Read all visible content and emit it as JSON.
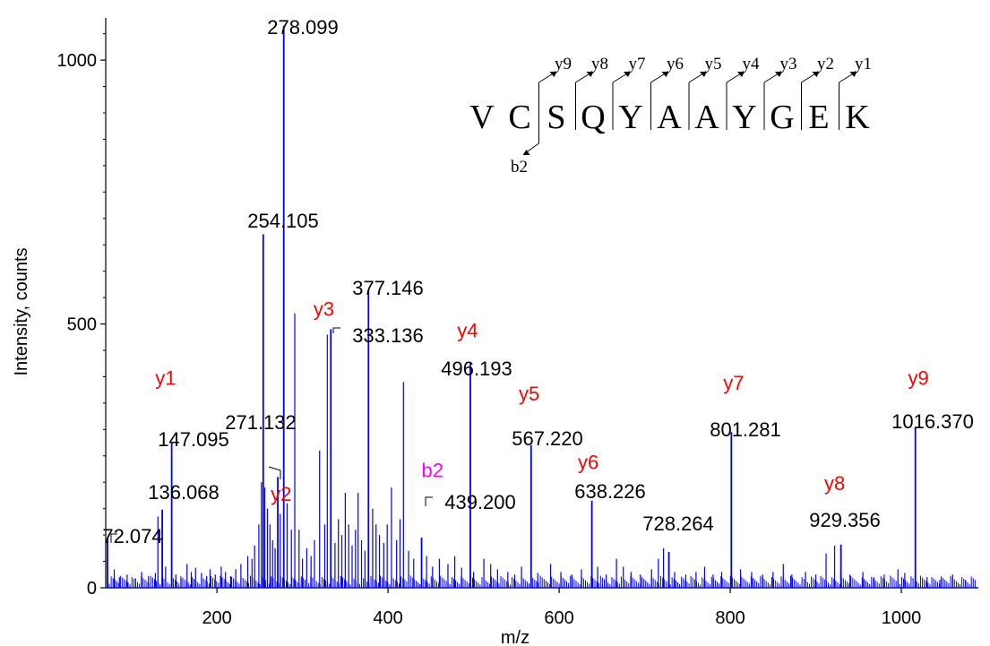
{
  "chart_data": {
    "type": "bar",
    "xlabel": "m/z",
    "ylabel": "Intensity, counts",
    "xlim": [
      70,
      1090
    ],
    "ylim": [
      0,
      1080
    ],
    "xticks": [
      200,
      400,
      600,
      800,
      1000
    ],
    "yticks": [
      0,
      500,
      1000
    ],
    "colors": {
      "peaks": "#0000ff",
      "ion": "#ff0000",
      "b_ion": "#ff00ff",
      "text": "#000000"
    },
    "peaks": [
      {
        "mz": 72.074,
        "intensity": 95,
        "label": "72.074"
      },
      {
        "mz": 136.068,
        "intensity": 148,
        "label": "136.068"
      },
      {
        "mz": 147.095,
        "intensity": 275,
        "label": "147.095"
      },
      {
        "mz": 254.105,
        "intensity": 670,
        "label": "254.105"
      },
      {
        "mz": 271.132,
        "intensity": 210,
        "label": "271.132"
      },
      {
        "mz": 278.099,
        "intensity": 1065,
        "label": "278.099"
      },
      {
        "mz": 333.136,
        "intensity": 490,
        "label": "333.136"
      },
      {
        "mz": 377.146,
        "intensity": 565,
        "label": "377.146"
      },
      {
        "mz": 439.2,
        "intensity": 95,
        "label": "439.200"
      },
      {
        "mz": 496.193,
        "intensity": 425,
        "label": "496.193"
      },
      {
        "mz": 567.22,
        "intensity": 270,
        "label": "567.220"
      },
      {
        "mz": 638.226,
        "intensity": 165,
        "label": "638.226"
      },
      {
        "mz": 728.264,
        "intensity": 68,
        "label": "728.264"
      },
      {
        "mz": 801.281,
        "intensity": 295,
        "label": "801.281"
      },
      {
        "mz": 929.356,
        "intensity": 82,
        "label": "929.356"
      },
      {
        "mz": 1016.37,
        "intensity": 305,
        "label": "1016.370"
      }
    ],
    "minor_peaks": [
      [
        80,
        35
      ],
      [
        86,
        20
      ],
      [
        95,
        25
      ],
      [
        105,
        18
      ],
      [
        112,
        30
      ],
      [
        120,
        22
      ],
      [
        128,
        28
      ],
      [
        131,
        135
      ],
      [
        140,
        40
      ],
      [
        152,
        25
      ],
      [
        158,
        18
      ],
      [
        165,
        45
      ],
      [
        170,
        30
      ],
      [
        175,
        38
      ],
      [
        182,
        28
      ],
      [
        188,
        22
      ],
      [
        192,
        35
      ],
      [
        198,
        25
      ],
      [
        205,
        40
      ],
      [
        210,
        30
      ],
      [
        216,
        22
      ],
      [
        222,
        35
      ],
      [
        228,
        45
      ],
      [
        236,
        60
      ],
      [
        241,
        55
      ],
      [
        244,
        80
      ],
      [
        249,
        120
      ],
      [
        252,
        200
      ],
      [
        256,
        190
      ],
      [
        259,
        150
      ],
      [
        262,
        120
      ],
      [
        265,
        90
      ],
      [
        268,
        75
      ],
      [
        274,
        140
      ],
      [
        282,
        160
      ],
      [
        287,
        110
      ],
      [
        291,
        520
      ],
      [
        296,
        110
      ],
      [
        300,
        55
      ],
      [
        305,
        75
      ],
      [
        310,
        60
      ],
      [
        314,
        90
      ],
      [
        320,
        260
      ],
      [
        326,
        120
      ],
      [
        329,
        480
      ],
      [
        338,
        85
      ],
      [
        342,
        130
      ],
      [
        346,
        100
      ],
      [
        350,
        180
      ],
      [
        354,
        120
      ],
      [
        358,
        80
      ],
      [
        362,
        110
      ],
      [
        365,
        180
      ],
      [
        369,
        90
      ],
      [
        373,
        70
      ],
      [
        382,
        150
      ],
      [
        386,
        120
      ],
      [
        390,
        100
      ],
      [
        395,
        85
      ],
      [
        399,
        120
      ],
      [
        404,
        190
      ],
      [
        410,
        90
      ],
      [
        414,
        130
      ],
      [
        418,
        390
      ],
      [
        424,
        70
      ],
      [
        430,
        55
      ],
      [
        445,
        60
      ],
      [
        452,
        40
      ],
      [
        460,
        55
      ],
      [
        470,
        45
      ],
      [
        478,
        60
      ],
      [
        486,
        38
      ],
      [
        500,
        30
      ],
      [
        512,
        55
      ],
      [
        520,
        45
      ],
      [
        528,
        35
      ],
      [
        540,
        30
      ],
      [
        548,
        25
      ],
      [
        556,
        40
      ],
      [
        575,
        28
      ],
      [
        590,
        45
      ],
      [
        602,
        30
      ],
      [
        615,
        25
      ],
      [
        626,
        35
      ],
      [
        645,
        40
      ],
      [
        655,
        25
      ],
      [
        667,
        55
      ],
      [
        675,
        40
      ],
      [
        684,
        30
      ],
      [
        695,
        25
      ],
      [
        708,
        35
      ],
      [
        716,
        55
      ],
      [
        722,
        75
      ],
      [
        735,
        30
      ],
      [
        748,
        25
      ],
      [
        760,
        30
      ],
      [
        770,
        40
      ],
      [
        780,
        25
      ],
      [
        790,
        30
      ],
      [
        812,
        35
      ],
      [
        825,
        30
      ],
      [
        838,
        25
      ],
      [
        850,
        30
      ],
      [
        862,
        45
      ],
      [
        872,
        25
      ],
      [
        888,
        30
      ],
      [
        900,
        25
      ],
      [
        912,
        65
      ],
      [
        922,
        80
      ],
      [
        940,
        25
      ],
      [
        955,
        30
      ],
      [
        968,
        20
      ],
      [
        980,
        25
      ],
      [
        996,
        35
      ],
      [
        1004,
        28
      ],
      [
        1030,
        20
      ],
      [
        1045,
        15
      ],
      [
        1060,
        25
      ],
      [
        1075,
        15
      ]
    ],
    "ion_labels": [
      {
        "text": "y1",
        "kind": "y",
        "mz": 140,
        "intensity": 385
      },
      {
        "text": "y2",
        "kind": "y",
        "mz": 275,
        "intensity": 165
      },
      {
        "text": "y3",
        "kind": "y",
        "mz": 325,
        "intensity": 515
      },
      {
        "text": "y4",
        "kind": "y",
        "mz": 493,
        "intensity": 475
      },
      {
        "text": "y5",
        "kind": "y",
        "mz": 565,
        "intensity": 355
      },
      {
        "text": "b2",
        "kind": "b",
        "mz": 452,
        "intensity": 210
      },
      {
        "text": "y6",
        "kind": "y",
        "mz": 634,
        "intensity": 225
      },
      {
        "text": "y7",
        "kind": "y",
        "mz": 804,
        "intensity": 375
      },
      {
        "text": "y8",
        "kind": "y",
        "mz": 922,
        "intensity": 185
      },
      {
        "text": "y9",
        "kind": "y",
        "mz": 1020,
        "intensity": 385
      }
    ],
    "sequence": {
      "residues": [
        "V",
        "C",
        "S",
        "Q",
        "Y",
        "A",
        "A",
        "Y",
        "G",
        "E",
        "K"
      ],
      "y_ions": [
        "y9",
        "y8",
        "y7",
        "y6",
        "y5",
        "y4",
        "y3",
        "y2",
        "y1"
      ],
      "b_ions": [
        "b2"
      ]
    }
  }
}
